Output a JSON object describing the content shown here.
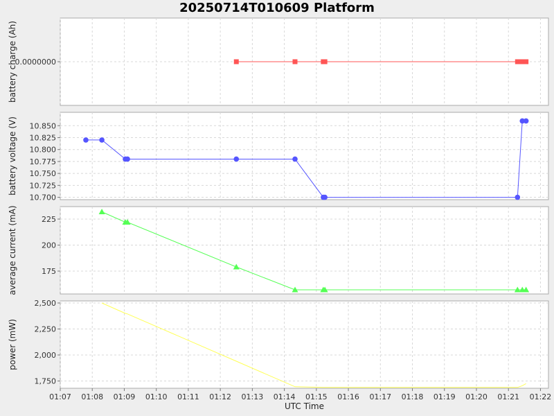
{
  "title": "20250714T010609 Platform",
  "colors": {
    "charge": "#ff5555",
    "voltage": "#5555ff",
    "current": "#55ff55",
    "power": "#ffff55",
    "panel_bg": "#ffffff",
    "grid": "#d8d8d8",
    "page_bg": "#eeeeee"
  },
  "chart_data": [
    {
      "type": "line",
      "name": "charge",
      "ylabel": "battery charge (Ah)",
      "yticks": [
        0
      ],
      "yticklabels": [
        "0.0000000"
      ],
      "ylim": [
        -1,
        1
      ],
      "marker": "square",
      "x": [
        "01:12:30",
        "01:14:20",
        "01:15:13",
        "01:15:16",
        "01:21:17",
        "01:21:23",
        "01:21:28",
        "01:21:33"
      ],
      "y": [
        0,
        0,
        0,
        0,
        0,
        0,
        0,
        0
      ]
    },
    {
      "type": "line",
      "name": "voltage",
      "ylabel": "battery voltage (V)",
      "yticks": [
        10.7,
        10.725,
        10.75,
        10.775,
        10.8,
        10.825,
        10.85
      ],
      "yticklabels": [
        "10.700",
        "10.725",
        "10.750",
        "10.775",
        "10.800",
        "10.825",
        "10.850"
      ],
      "ylim": [
        10.695,
        10.878
      ],
      "marker": "circle",
      "x": [
        "01:07:48",
        "01:08:18",
        "01:09:02",
        "01:09:06",
        "01:12:30",
        "01:14:20",
        "01:15:13",
        "01:15:16",
        "01:21:17",
        "01:21:26",
        "01:21:33"
      ],
      "y": [
        10.82,
        10.82,
        10.78,
        10.78,
        10.78,
        10.78,
        10.7,
        10.7,
        10.7,
        10.86,
        10.86
      ]
    },
    {
      "type": "line",
      "name": "current",
      "ylabel": "average current (mA)",
      "yticks": [
        175,
        200,
        225
      ],
      "yticklabels": [
        "175",
        "200",
        "225"
      ],
      "ylim": [
        153,
        237
      ],
      "marker": "triangle",
      "x": [
        "01:08:18",
        "01:09:02",
        "01:09:06",
        "01:12:30",
        "01:14:20",
        "01:15:13",
        "01:15:16",
        "01:21:17",
        "01:21:26",
        "01:21:33"
      ],
      "y": [
        232,
        222,
        222,
        179,
        157,
        157,
        157,
        157,
        157,
        157
      ]
    },
    {
      "type": "line",
      "name": "power",
      "ylabel": "power (mW)",
      "yticks": [
        1750,
        2000,
        2250,
        2500
      ],
      "yticklabels": [
        "1,750",
        "2,000",
        "2,250",
        "2,500"
      ],
      "ylim": [
        1680,
        2520
      ],
      "marker": "none",
      "x": [
        "01:08:18",
        "01:09:02",
        "01:09:06",
        "01:12:30",
        "01:14:20",
        "01:15:13",
        "01:15:16",
        "01:21:17",
        "01:21:26",
        "01:21:33"
      ],
      "y": [
        2500,
        2400,
        2395,
        1940,
        1695,
        1688,
        1688,
        1688,
        1705,
        1725
      ]
    }
  ],
  "xaxis": {
    "label": "UTC Time",
    "xlim": [
      "01:07:00",
      "01:22:15"
    ],
    "ticks": [
      "01:07",
      "01:08",
      "01:09",
      "01:10",
      "01:11",
      "01:12",
      "01:13",
      "01:14",
      "01:15",
      "01:16",
      "01:17",
      "01:18",
      "01:19",
      "01:20",
      "01:21",
      "01:22"
    ]
  }
}
